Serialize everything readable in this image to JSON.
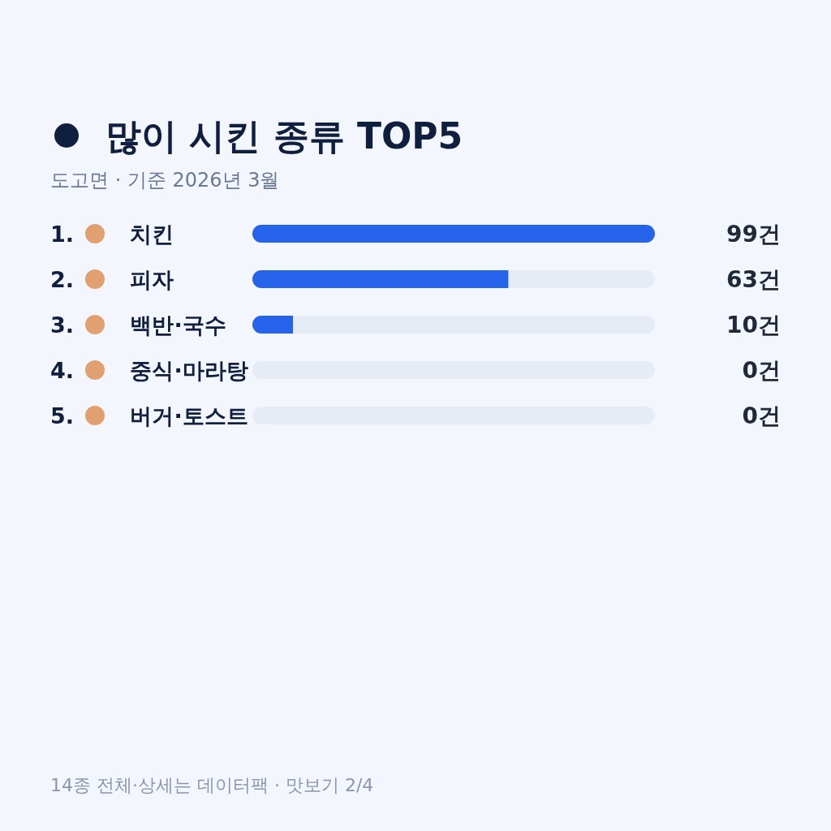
{
  "chart_data": {
    "type": "bar",
    "orientation": "horizontal",
    "stacked": true,
    "title": "많이 시킨 종류 TOP5",
    "subtitle": "도고면 · 기준 2026년 3월",
    "categories": [
      "1. 치킨",
      "2. 피자",
      "3. 백반·국수",
      "4. 중식·마라탕",
      "5. 버거·토스트"
    ],
    "series": [
      {
        "color": "#2563eb",
        "values": [
          99,
          63,
          10,
          0,
          0
        ],
        "value_labels": [
          "99건",
          "63건",
          "10건",
          "0건",
          "0건"
        ]
      },
      {
        "color": "#e6ecf5",
        "values": [
          0,
          36,
          89,
          99,
          99
        ]
      }
    ],
    "annotations": [
      "14종 전체·상세는 데이터팩 · 맛보기 2/4"
    ]
  }
}
